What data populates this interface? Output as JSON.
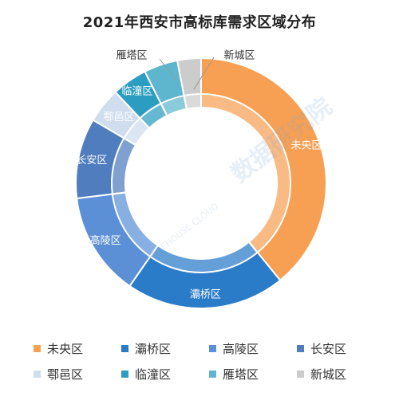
{
  "chart_data": {
    "type": "pie",
    "title": "2021年西安市高标库需求区域分布",
    "categories": [
      "未央区",
      "灞桥区",
      "高陵区",
      "长安区",
      "鄠邑区",
      "临潼区",
      "雁塔区",
      "新城区"
    ],
    "values": [
      38.5,
      20.2,
      13.2,
      10.2,
      4.5,
      4.5,
      4.3,
      3.0
    ],
    "colors": [
      "#F7A054",
      "#2A7BC8",
      "#5B90D6",
      "#4F7DBE",
      "#CFDDEF",
      "#2B9DC1",
      "#5DB6CE",
      "#CCCCCC"
    ],
    "legend": "bottom",
    "start_angle_deg": 0,
    "direction": "clockwise"
  },
  "watermarks": [
    "数据研究院",
    "DATA RESEARCH",
    "WAREHOUSE CLOUD"
  ]
}
